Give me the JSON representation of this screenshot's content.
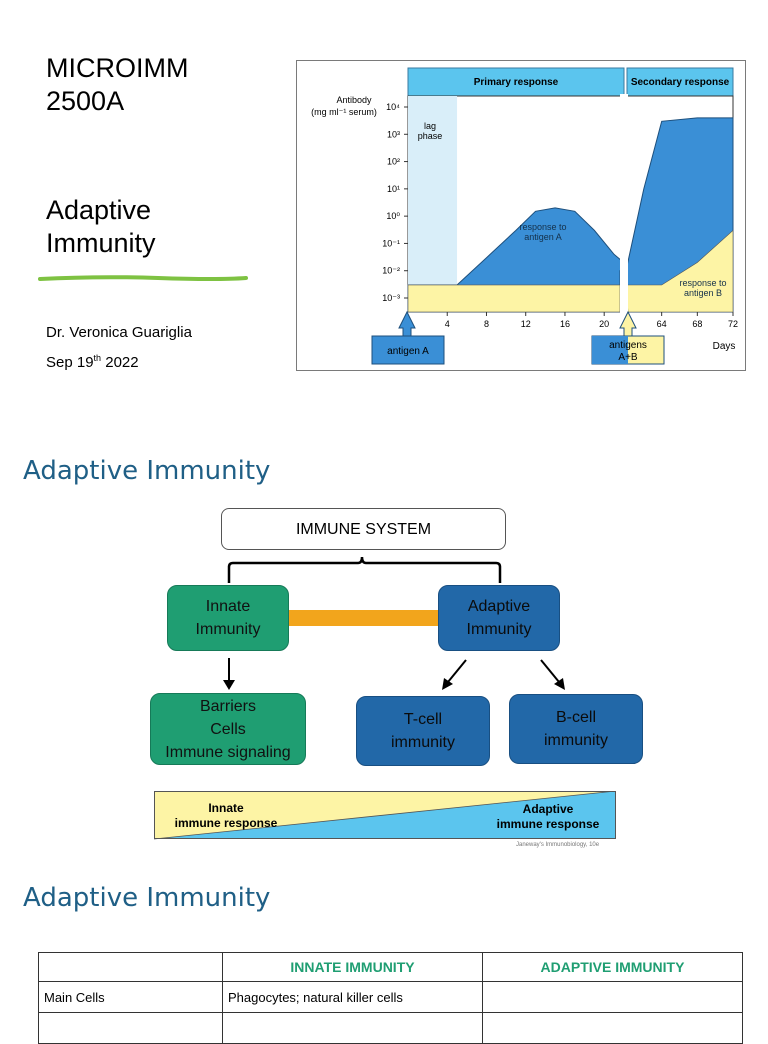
{
  "slide1": {
    "course_line1": "MICROIMM",
    "course_line2": "2500A",
    "topic_line1": "Adaptive",
    "topic_line2": "Immunity",
    "author": "Dr. Veronica Guariglia",
    "date_prefix": "Sep 19",
    "date_sup": "th",
    "date_suffix": " 2022"
  },
  "figure": {
    "primary_label": "Primary response",
    "secondary_label": "Secondary response",
    "y_title_1": "Antibody",
    "y_title_2": "(mg ml⁻¹ serum)",
    "lag_1": "lag",
    "lag_2": "phase",
    "resp_a_1": "response to",
    "resp_a_2": "antigen A",
    "resp_b_1": "response to",
    "resp_b_2": "antigen B",
    "antigen_a": "antigen A",
    "antigens_1": "antigens",
    "antigens_2": "A+B",
    "days": "Days",
    "colors": {
      "header": "#5bc5ee",
      "curve": "#3a8fd6",
      "baseline": "#fdf4a5",
      "lag": "#d9eef9"
    }
  },
  "chart_data": {
    "type": "area",
    "title": "",
    "xlabel": "Days",
    "ylabel": "Antibody (mg ml⁻¹ serum)",
    "yscale": "log",
    "ylim": [
      0.001,
      10000
    ],
    "y_ticks": [
      "10³",
      "10²",
      "10¹",
      "10⁰",
      "10⁻¹",
      "10⁻²",
      "10⁻³"
    ],
    "x_ticks": [
      "4",
      "8",
      "12",
      "16",
      "20",
      "64",
      "68",
      "72"
    ],
    "y_tick_top": "10⁴",
    "series": [
      {
        "name": "response to antigen A",
        "x": [
          0,
          5,
          8,
          11,
          13,
          15,
          17,
          19,
          21,
          23,
          60,
          62,
          64,
          68,
          72
        ],
        "y": [
          0.003,
          0.003,
          0.03,
          0.3,
          1.5,
          2,
          1.5,
          0.3,
          0.04,
          0.01,
          0.01,
          10,
          3000,
          4000,
          4000
        ]
      },
      {
        "name": "response to antigen B",
        "x": [
          0,
          23,
          60,
          64,
          68,
          72
        ],
        "y": [
          0.003,
          0.003,
          0.003,
          0.003,
          0.02,
          0.3
        ]
      }
    ]
  },
  "section2": {
    "title": "Adaptive Immunity",
    "immune_system": "IMMUNE SYSTEM",
    "innate_1": "Innate",
    "innate_2": "Immunity",
    "adaptive_1": "Adaptive",
    "adaptive_2": "Immunity",
    "barriers_1": "Barriers",
    "barriers_2": "Cells",
    "barriers_3": "Immune signaling",
    "tcell_1": "T-cell",
    "tcell_2": "immunity",
    "bcell_1": "B-cell",
    "bcell_2": "immunity",
    "innate_resp_1": "Innate",
    "innate_resp_2": "immune response",
    "adaptive_resp_1": "Adaptive",
    "adaptive_resp_2": "immune response",
    "credit": "Janeway's Immunobiology, 10e",
    "colors": {
      "green": "#1f9e72",
      "blue": "#2268a8",
      "arrow": "#f2a51c",
      "yellow": "#fdf4a5",
      "light_blue": "#5bc5ee"
    }
  },
  "section3": {
    "title": "Adaptive Immunity",
    "headers": [
      "",
      "INNATE IMMUNITY",
      "ADAPTIVE IMMUNITY"
    ],
    "rows": [
      [
        "Main Cells",
        "Phagocytes; natural killer cells",
        ""
      ],
      [
        "",
        "",
        ""
      ]
    ]
  }
}
